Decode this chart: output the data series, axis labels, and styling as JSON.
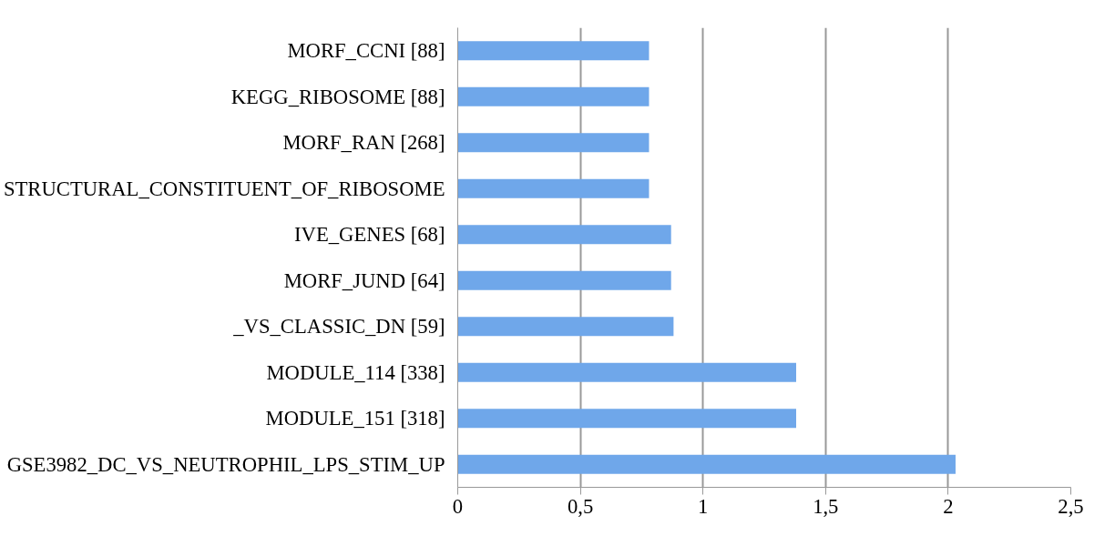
{
  "chart_data": {
    "type": "bar",
    "orientation": "horizontal",
    "categories": [
      "MORF_CCNI [88]",
      "KEGG_RIBOSOME [88]",
      "MORF_RAN [268]",
      "STRUCTURAL_CONSTITUENT_OF_RIBOSOME",
      "IVE_GENES [68]",
      "MORF_JUND [64]",
      "_VS_CLASSIC_DN [59]",
      "MODULE_114 [338]",
      "MODULE_151 [318]",
      "GSE3982_DC_VS_NEUTROPHIL_LPS_STIM_UP"
    ],
    "values": [
      0.78,
      0.78,
      0.78,
      0.78,
      0.87,
      0.87,
      0.88,
      1.38,
      1.38,
      2.03
    ],
    "color": "#6fa7ea",
    "xlim": [
      0,
      2.5
    ],
    "xticks": [
      0,
      {
        "value": 0.5,
        "label": "0,5"
      },
      1,
      {
        "value": 1.5,
        "label": "1,5"
      },
      2,
      {
        "value": 2.5,
        "label": "2,5"
      }
    ],
    "grid": "x"
  }
}
